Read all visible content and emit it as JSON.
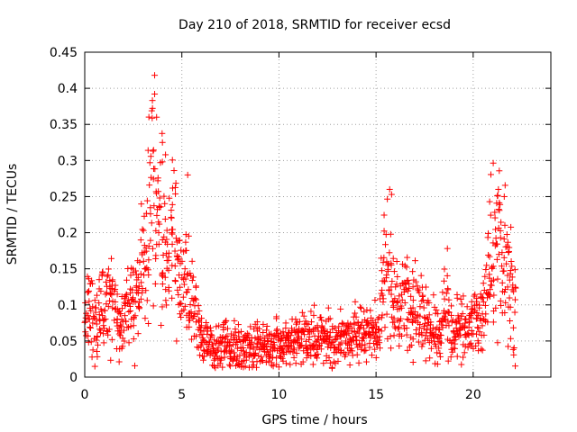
{
  "chart_data": {
    "type": "scatter",
    "title": "Day 210 of 2018, SRMTID for receiver ecsd",
    "xlabel": "GPS time / hours",
    "ylabel": "SRMTID / TECUs",
    "xlim": [
      0,
      24
    ],
    "ylim": [
      0,
      0.45
    ],
    "xticks": [
      0,
      5,
      10,
      15,
      20
    ],
    "xtick_labels": [
      "0",
      "5",
      "10",
      "15",
      "20"
    ],
    "yticks": [
      0,
      0.05,
      0.1,
      0.15,
      0.2,
      0.25,
      0.3,
      0.35,
      0.4,
      0.45
    ],
    "ytick_labels": [
      "0",
      "0.05",
      "0.1",
      "0.15",
      "0.2",
      "0.25",
      "0.3",
      "0.35",
      "0.4",
      "0.45"
    ],
    "grid": true,
    "marker": "+",
    "color": "#ff0000",
    "x_step_hours": 0.1,
    "series": [
      {
        "name": "SRMTID",
        "x_start": 0,
        "x_end": 22.9,
        "envelope": [
          0.07,
          0.085,
          0.09,
          0.085,
          0.07,
          0.065,
          0.07,
          0.09,
          0.095,
          0.085,
          0.09,
          0.1,
          0.095,
          0.1,
          0.1,
          0.09,
          0.08,
          0.07,
          0.065,
          0.075,
          0.09,
          0.09,
          0.1,
          0.105,
          0.1,
          0.1,
          0.11,
          0.13,
          0.16,
          0.2,
          0.18,
          0.17,
          0.19,
          0.22,
          0.26,
          0.24,
          0.22,
          0.2,
          0.22,
          0.2,
          0.18,
          0.19,
          0.17,
          0.16,
          0.17,
          0.2,
          0.21,
          0.14,
          0.13,
          0.11,
          0.12,
          0.12,
          0.12,
          0.11,
          0.1,
          0.11,
          0.09,
          0.08,
          0.07,
          0.06,
          0.05,
          0.045,
          0.05,
          0.05,
          0.045,
          0.04,
          0.04,
          0.04,
          0.035,
          0.04,
          0.04,
          0.045,
          0.05,
          0.045,
          0.04,
          0.04,
          0.045,
          0.04,
          0.045,
          0.04,
          0.04,
          0.035,
          0.035,
          0.04,
          0.045,
          0.04,
          0.04,
          0.045,
          0.045,
          0.04,
          0.04,
          0.045,
          0.045,
          0.045,
          0.04,
          0.04,
          0.04,
          0.04,
          0.045,
          0.045,
          0.045,
          0.045,
          0.045,
          0.045,
          0.05,
          0.045,
          0.05,
          0.05,
          0.05,
          0.05,
          0.055,
          0.05,
          0.05,
          0.05,
          0.05,
          0.05,
          0.055,
          0.055,
          0.055,
          0.05,
          0.05,
          0.055,
          0.06,
          0.055,
          0.055,
          0.05,
          0.055,
          0.05,
          0.055,
          0.05,
          0.05,
          0.055,
          0.055,
          0.05,
          0.05,
          0.055,
          0.055,
          0.05,
          0.055,
          0.06,
          0.055,
          0.055,
          0.055,
          0.055,
          0.055,
          0.06,
          0.06,
          0.055,
          0.06,
          0.06,
          0.06,
          0.06,
          0.1,
          0.12,
          0.14,
          0.15,
          0.14,
          0.12,
          0.11,
          0.1,
          0.1,
          0.09,
          0.09,
          0.1,
          0.12,
          0.11,
          0.1,
          0.09,
          0.085,
          0.1,
          0.11,
          0.1,
          0.09,
          0.085,
          0.08,
          0.075,
          0.07,
          0.07,
          0.065,
          0.065,
          0.06,
          0.055,
          0.055,
          0.06,
          0.08,
          0.1,
          0.1,
          0.08,
          0.07,
          0.065,
          0.06,
          0.065,
          0.07,
          0.07,
          0.065,
          0.06,
          0.06,
          0.065,
          0.07,
          0.075,
          0.08,
          0.08,
          0.075,
          0.075,
          0.08,
          0.085,
          0.1,
          0.13,
          0.16,
          0.19,
          0.2,
          0.22,
          0.2,
          0.19,
          0.18,
          0.17,
          0.16,
          0.14,
          0.13,
          0.12,
          0.11,
          0.1
        ],
        "highlighted_points": [
          {
            "x": 3.6,
            "y": 0.418
          },
          {
            "x": 3.6,
            "y": 0.392
          },
          {
            "x": 3.7,
            "y": 0.36
          },
          {
            "x": 4.0,
            "y": 0.325
          },
          {
            "x": 5.3,
            "y": 0.28
          },
          {
            "x": 15.7,
            "y": 0.26
          },
          {
            "x": 15.8,
            "y": 0.253
          },
          {
            "x": 21.3,
            "y": 0.26
          },
          {
            "x": 21.6,
            "y": 0.25
          }
        ]
      }
    ]
  }
}
